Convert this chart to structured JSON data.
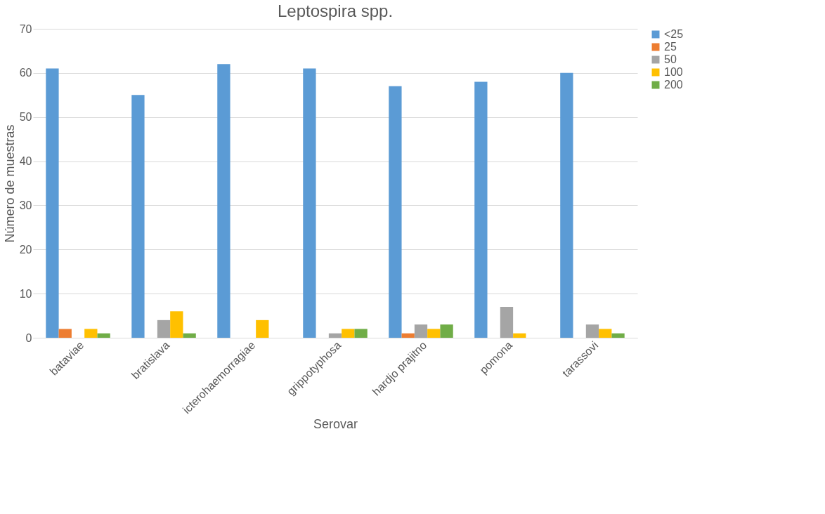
{
  "chart_data": {
    "type": "bar",
    "title": "Leptospira spp.",
    "xlabel": "Serovar",
    "ylabel": "Número de muestras",
    "categories": [
      "bataviae",
      "bratislava",
      "icterohaemorragiae",
      "grippotyphosa",
      "hardjo prajitno",
      "pomona",
      "tarassovi"
    ],
    "series": [
      {
        "name": "<25",
        "color": "#5b9bd5",
        "values": [
          61,
          55,
          62,
          61,
          57,
          58,
          60
        ]
      },
      {
        "name": "25",
        "color": "#ed7d31",
        "values": [
          2,
          0,
          0,
          0,
          1,
          0,
          0
        ]
      },
      {
        "name": "50",
        "color": "#a5a5a5",
        "values": [
          0,
          4,
          0,
          1,
          3,
          7,
          3
        ]
      },
      {
        "name": "100",
        "color": "#ffc000",
        "values": [
          2,
          6,
          4,
          2,
          2,
          1,
          2
        ]
      },
      {
        "name": "200",
        "color": "#70ad47",
        "values": [
          1,
          1,
          0,
          2,
          3,
          0,
          1
        ]
      }
    ],
    "ylim": [
      0,
      70
    ],
    "yticks": [
      0,
      10,
      20,
      30,
      40,
      50,
      60,
      70
    ],
    "grid": "y",
    "legend": "right"
  }
}
